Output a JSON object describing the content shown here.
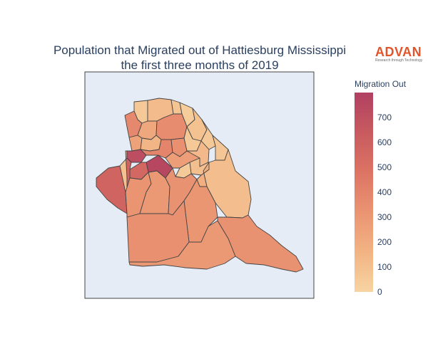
{
  "title": {
    "line1": "Population that Migrated out of Hattiesburg Mississippi",
    "line2": "the first three months of 2019"
  },
  "logo": {
    "name": "ADVAN",
    "tagline": "Research through Technology",
    "color": "#e2542a"
  },
  "colorbar": {
    "title": "Migration Out",
    "min": 0,
    "max": 800,
    "ticks": [
      "0",
      "100",
      "200",
      "300",
      "400",
      "500",
      "600",
      "700"
    ],
    "colorscale": [
      "#f7d4a2",
      "#f2b384",
      "#ea9472",
      "#dd7464",
      "#c85a5f",
      "#b14062"
    ]
  },
  "map": {
    "background": "#e5ecf6",
    "border_color": "#444444",
    "regions": [
      {
        "id": "north-1",
        "value": 60
      },
      {
        "id": "north-2",
        "value": 120
      },
      {
        "id": "north-3",
        "value": 80
      },
      {
        "id": "north-4",
        "value": 40
      },
      {
        "id": "north-east",
        "value": 90
      },
      {
        "id": "east-strip-1",
        "value": 60
      },
      {
        "id": "east-strip-2",
        "value": 70
      },
      {
        "id": "east-large",
        "value": 110
      },
      {
        "id": "nw-strip",
        "value": 380
      },
      {
        "id": "center-n1",
        "value": 220
      },
      {
        "id": "center-n2",
        "value": 360
      },
      {
        "id": "center-n3",
        "value": 250
      },
      {
        "id": "center-n4",
        "value": 150
      },
      {
        "id": "center-n5",
        "value": 60
      },
      {
        "id": "dark-center-1",
        "value": 720
      },
      {
        "id": "dark-center-2",
        "value": 760
      },
      {
        "id": "dark-center-3",
        "value": 560
      },
      {
        "id": "center-m1",
        "value": 400
      },
      {
        "id": "center-m2",
        "value": 340
      },
      {
        "id": "center-m3",
        "value": 270
      },
      {
        "id": "center-m4",
        "value": 130
      },
      {
        "id": "center-m5",
        "value": 100
      },
      {
        "id": "center-m6",
        "value": 50
      },
      {
        "id": "center-m7",
        "value": 180
      },
      {
        "id": "west-big",
        "value": 580
      },
      {
        "id": "west-strip",
        "value": 90
      },
      {
        "id": "south-1",
        "value": 320
      },
      {
        "id": "south-2",
        "value": 300
      },
      {
        "id": "south-3",
        "value": 330
      },
      {
        "id": "south-4",
        "value": 310
      },
      {
        "id": "south-5",
        "value": 340
      },
      {
        "id": "south-6",
        "value": 300
      },
      {
        "id": "south-east",
        "value": 330
      }
    ]
  }
}
